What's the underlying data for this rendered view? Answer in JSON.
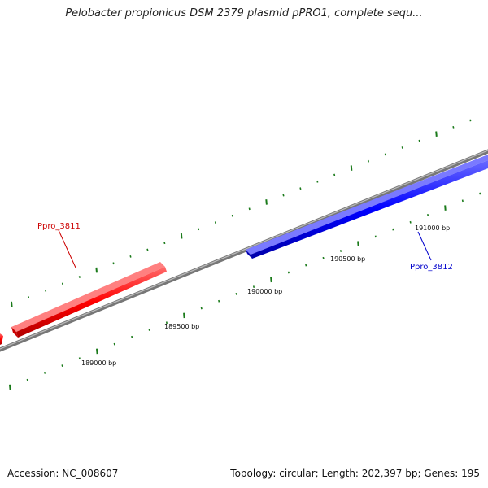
{
  "title": "Pelobacter propionicus DSM 2379 plasmid pPRO1, complete sequ...",
  "footer": {
    "accession": "Accession: NC_008607",
    "summary": "Topology: circular; Length: 202,397 bp; Genes: 195"
  },
  "colors": {
    "forward_gene": "#ff0000",
    "reverse_gene": "#0000ff",
    "backbone": "#888888",
    "ticks": "#1a7a1a"
  },
  "ruler": {
    "labels": [
      "189000 bp",
      "189500 bp",
      "190000 bp",
      "190500 bp",
      "191000 bp"
    ]
  },
  "genes": [
    {
      "name": "Ppro_3811",
      "strand": "forward"
    },
    {
      "name": "Ppro_3812",
      "strand": "reverse"
    }
  ]
}
